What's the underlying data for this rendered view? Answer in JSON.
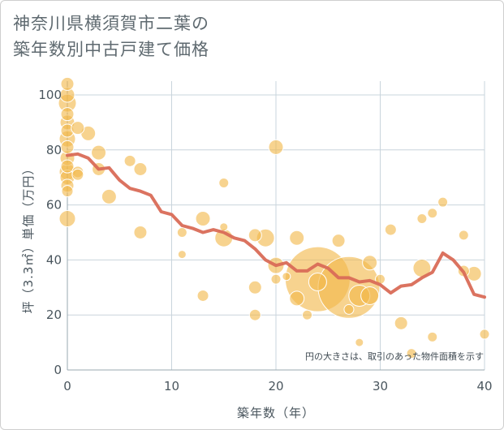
{
  "title_lines": [
    "神奈川県横須賀市二葉の",
    "築年数別中古戸建て価格"
  ],
  "chart_data": {
    "type": "scatter",
    "xlabel": "築年数（年）",
    "ylabel": "坪（3.3㎡）単価（万円）",
    "xlim": [
      0,
      40
    ],
    "ylim": [
      0,
      105
    ],
    "xticks": [
      0,
      10,
      20,
      30,
      40
    ],
    "yticks": [
      0,
      20,
      40,
      60,
      80,
      100
    ],
    "grid": true,
    "note": "円の大きさは、取引のあった物件面積を示す",
    "colors": {
      "bubble": "#f2b84b",
      "line": "#d96b57",
      "grid": "#c9d4dc"
    },
    "bubbles": [
      {
        "x": 0,
        "y": 104,
        "s": 8
      },
      {
        "x": 0,
        "y": 100,
        "s": 9
      },
      {
        "x": 0,
        "y": 97,
        "s": 11
      },
      {
        "x": 0,
        "y": 93,
        "s": 8
      },
      {
        "x": 0,
        "y": 90,
        "s": 9
      },
      {
        "x": 0,
        "y": 87,
        "s": 8
      },
      {
        "x": 0,
        "y": 84,
        "s": 10
      },
      {
        "x": 0,
        "y": 81,
        "s": 8
      },
      {
        "x": 0,
        "y": 77,
        "s": 9
      },
      {
        "x": 0,
        "y": 74,
        "s": 8
      },
      {
        "x": 0,
        "y": 72,
        "s": 10
      },
      {
        "x": 0,
        "y": 70,
        "s": 9
      },
      {
        "x": 0,
        "y": 67,
        "s": 8
      },
      {
        "x": 0,
        "y": 65,
        "s": 7
      },
      {
        "x": 0,
        "y": 55,
        "s": 10
      },
      {
        "x": 1,
        "y": 88,
        "s": 8
      },
      {
        "x": 1,
        "y": 72,
        "s": 7
      },
      {
        "x": 1,
        "y": 71,
        "s": 7
      },
      {
        "x": 2,
        "y": 86,
        "s": 9
      },
      {
        "x": 3,
        "y": 79,
        "s": 9
      },
      {
        "x": 3,
        "y": 73,
        "s": 8
      },
      {
        "x": 4,
        "y": 63,
        "s": 9
      },
      {
        "x": 6,
        "y": 76,
        "s": 7
      },
      {
        "x": 7,
        "y": 73,
        "s": 8
      },
      {
        "x": 7,
        "y": 50,
        "s": 8
      },
      {
        "x": 11,
        "y": 50,
        "s": 6
      },
      {
        "x": 11,
        "y": 42,
        "s": 5
      },
      {
        "x": 13,
        "y": 55,
        "s": 9
      },
      {
        "x": 13,
        "y": 27,
        "s": 7
      },
      {
        "x": 15,
        "y": 68,
        "s": 6
      },
      {
        "x": 15,
        "y": 52,
        "s": 5
      },
      {
        "x": 15,
        "y": 48,
        "s": 11
      },
      {
        "x": 18,
        "y": 49,
        "s": 8
      },
      {
        "x": 18,
        "y": 30,
        "s": 8
      },
      {
        "x": 18,
        "y": 20,
        "s": 7
      },
      {
        "x": 19,
        "y": 48,
        "s": 11
      },
      {
        "x": 20,
        "y": 81,
        "s": 9
      },
      {
        "x": 20,
        "y": 38,
        "s": 10
      },
      {
        "x": 20,
        "y": 33,
        "s": 6
      },
      {
        "x": 21,
        "y": 34,
        "s": 5
      },
      {
        "x": 22,
        "y": 48,
        "s": 9
      },
      {
        "x": 22,
        "y": 26,
        "s": 9
      },
      {
        "x": 23,
        "y": 20,
        "s": 6
      },
      {
        "x": 24,
        "y": 33,
        "s": 40
      },
      {
        "x": 24,
        "y": 32,
        "s": 11
      },
      {
        "x": 26,
        "y": 47,
        "s": 8
      },
      {
        "x": 27,
        "y": 30,
        "s": 38
      },
      {
        "x": 27,
        "y": 22,
        "s": 6
      },
      {
        "x": 28,
        "y": 27,
        "s": 13
      },
      {
        "x": 28,
        "y": 10,
        "s": 5
      },
      {
        "x": 29,
        "y": 39,
        "s": 9
      },
      {
        "x": 29,
        "y": 27,
        "s": 11
      },
      {
        "x": 30,
        "y": 33,
        "s": 6
      },
      {
        "x": 31,
        "y": 51,
        "s": 7
      },
      {
        "x": 32,
        "y": 17,
        "s": 8
      },
      {
        "x": 33,
        "y": 6,
        "s": 6
      },
      {
        "x": 34,
        "y": 55,
        "s": 6
      },
      {
        "x": 34,
        "y": 37,
        "s": 11
      },
      {
        "x": 35,
        "y": 57,
        "s": 6
      },
      {
        "x": 35,
        "y": 12,
        "s": 6
      },
      {
        "x": 36,
        "y": 61,
        "s": 6
      },
      {
        "x": 38,
        "y": 49,
        "s": 6
      },
      {
        "x": 38,
        "y": 36,
        "s": 7
      },
      {
        "x": 39,
        "y": 35,
        "s": 9
      },
      {
        "x": 40,
        "y": 13,
        "s": 6
      }
    ],
    "line": {
      "x": [
        0,
        1,
        2,
        3,
        4,
        5,
        6,
        7,
        8,
        9,
        10,
        11,
        12,
        13,
        14,
        15,
        16,
        17,
        18,
        19,
        20,
        21,
        22,
        23,
        24,
        25,
        26,
        27,
        28,
        29,
        30,
        31,
        32,
        33,
        34,
        35,
        36,
        37,
        38,
        39,
        40
      ],
      "y": [
        78,
        78.5,
        77,
        73,
        73.5,
        69,
        66,
        65,
        63.5,
        57.5,
        56.5,
        52.5,
        51.5,
        50,
        51,
        50,
        48,
        47,
        44,
        40,
        38,
        39,
        36,
        36,
        38.5,
        37,
        33.5,
        33.5,
        32,
        32.5,
        31,
        28,
        30.5,
        31,
        33.5,
        35.5,
        42.5,
        40,
        35.5,
        27.5,
        26.5
      ]
    }
  }
}
